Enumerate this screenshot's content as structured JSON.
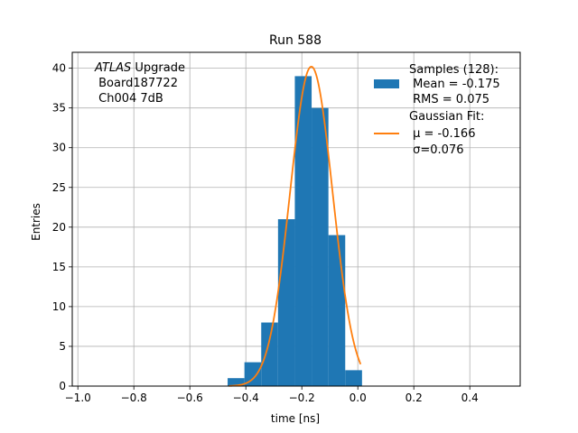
{
  "chart_data": {
    "type": "bar",
    "title": "Run 588",
    "xlabel": "time [ns]",
    "ylabel": "Entries",
    "xlim": [
      -1.02,
      0.58
    ],
    "ylim": [
      0,
      42
    ],
    "grid": true,
    "x_ticks": [
      -1.0,
      -0.8,
      -0.6,
      -0.4,
      -0.2,
      0.0,
      0.2,
      0.4
    ],
    "x_tick_labels": [
      "−1.0",
      "−0.8",
      "−0.6",
      "−0.4",
      "−0.2",
      "0.0",
      "0.2",
      "0.4"
    ],
    "y_ticks": [
      0,
      5,
      10,
      15,
      20,
      25,
      30,
      35,
      40
    ],
    "y_tick_labels": [
      "0",
      "5",
      "10",
      "15",
      "20",
      "25",
      "30",
      "35",
      "40"
    ],
    "histogram": {
      "color": "#1f77b4",
      "bin_edges": [
        -0.465,
        -0.405,
        -0.345,
        -0.285,
        -0.225,
        -0.165,
        -0.105,
        -0.045,
        0.015
      ],
      "counts": [
        1,
        3,
        8,
        21,
        39,
        35,
        19,
        2
      ]
    },
    "fit": {
      "color": "#ff7f0e",
      "type": "gaussian",
      "mu": -0.166,
      "sigma": 0.076,
      "amplitude": 40.2,
      "x_range": [
        -0.46,
        0.01
      ]
    },
    "annotation": {
      "italic": "ATLAS",
      "line1_rest": " Upgrade",
      "line2": " Board187722",
      "line3": " Ch004 7dB"
    },
    "legend": {
      "position": "top-right",
      "entries": [
        {
          "kind": "patch",
          "color": "#1f77b4",
          "lines": [
            "Samples (128):",
            " Mean = -0.175",
            " RMS = 0.075"
          ]
        },
        {
          "kind": "line",
          "color": "#ff7f0e",
          "lines": [
            "Gaussian Fit:",
            " μ = -0.166",
            " σ=0.076"
          ]
        }
      ]
    }
  }
}
